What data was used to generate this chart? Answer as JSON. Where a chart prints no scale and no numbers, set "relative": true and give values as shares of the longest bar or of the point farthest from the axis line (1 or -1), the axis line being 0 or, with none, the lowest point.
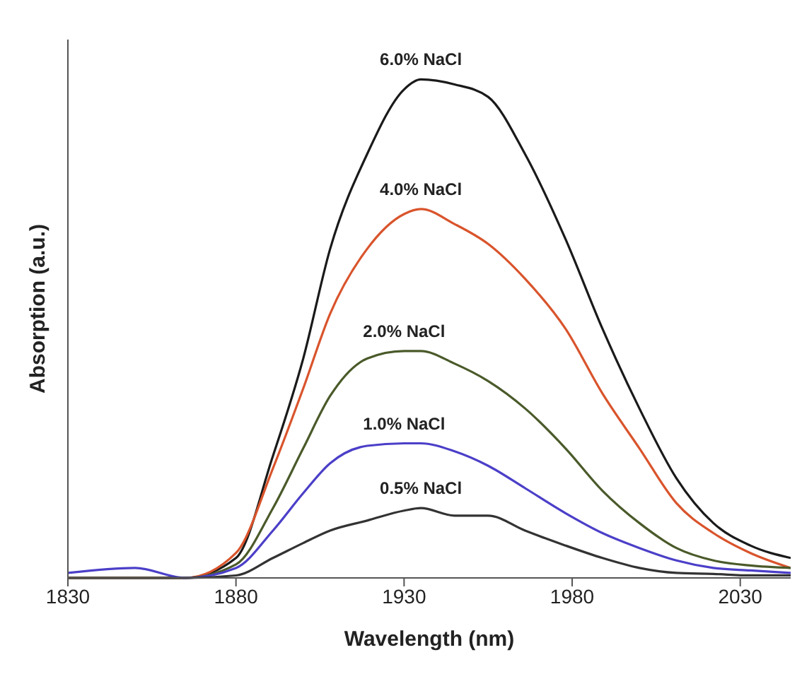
{
  "chart_data": {
    "type": "line",
    "xlabel": "Wavelength (nm)",
    "ylabel": "Absorption (a.u.)",
    "relative": true,
    "xlim": [
      1830,
      2045
    ],
    "xticks": [
      1830,
      1880,
      1930,
      1980,
      2030
    ],
    "grid": false,
    "legend": false,
    "marker": "none",
    "line_style": "solid",
    "x": [
      1830,
      1850,
      1865,
      1880,
      1891,
      1900,
      1908,
      1919,
      1930,
      1935,
      1945,
      1955,
      1966,
      1978,
      1989,
      2000,
      2011,
      2022,
      2033,
      2045
    ],
    "series": [
      {
        "name": "6.0% NaCl",
        "color": "#1a1a1a",
        "values": [
          0,
          0,
          0,
          0.04,
          0.245,
          0.44,
          0.66,
          0.85,
          0.98,
          1.0,
          0.99,
          0.965,
          0.85,
          0.68,
          0.5,
          0.34,
          0.2,
          0.11,
          0.065,
          0.04
        ]
      },
      {
        "name": "4.0% NaCl",
        "color": "#d9542c",
        "values": [
          0,
          0,
          0,
          0.05,
          0.22,
          0.38,
          0.53,
          0.66,
          0.73,
          0.74,
          0.71,
          0.67,
          0.6,
          0.5,
          0.37,
          0.26,
          0.15,
          0.09,
          0.05,
          0.02
        ]
      },
      {
        "name": "2.0% NaCl",
        "color": "#4a5a2a",
        "values": [
          0,
          0,
          0,
          0.027,
          0.14,
          0.26,
          0.365,
          0.44,
          0.455,
          0.455,
          0.43,
          0.395,
          0.34,
          0.26,
          0.175,
          0.11,
          0.06,
          0.035,
          0.025,
          0.02
        ]
      },
      {
        "name": "1.0% NaCl",
        "color": "#4b3fc8",
        "values": [
          0.01,
          0.02,
          0,
          0.02,
          0.095,
          0.17,
          0.23,
          0.265,
          0.27,
          0.27,
          0.254,
          0.225,
          0.18,
          0.13,
          0.09,
          0.06,
          0.035,
          0.02,
          0.015,
          0.01
        ]
      },
      {
        "name": "0.5% NaCl",
        "color": "#333333",
        "values": [
          0,
          0,
          0,
          0.005,
          0.04,
          0.07,
          0.095,
          0.115,
          0.135,
          0.14,
          0.125,
          0.125,
          0.095,
          0.065,
          0.04,
          0.02,
          0.01,
          0.008,
          0.005,
          0.005
        ]
      }
    ]
  }
}
